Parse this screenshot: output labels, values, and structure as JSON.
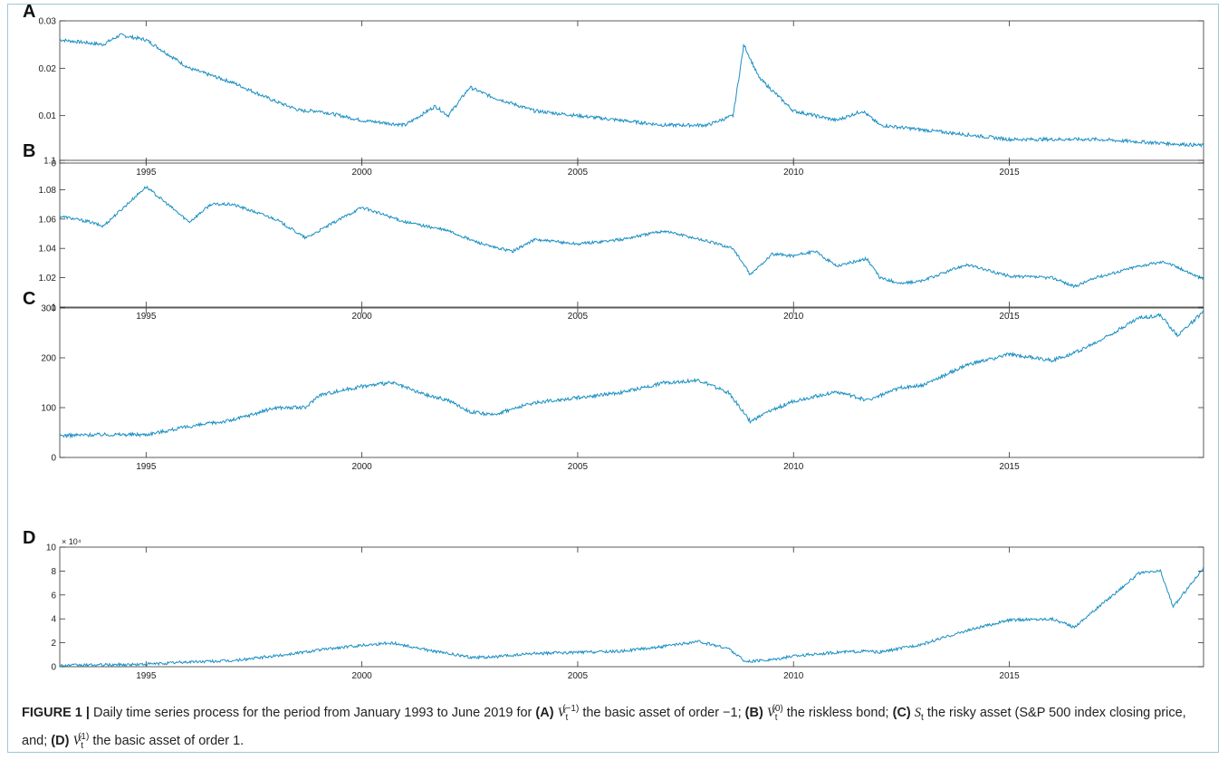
{
  "figure": {
    "caption_label": "FIGURE 1 |",
    "caption_intro": "Daily time series process for the period from January 1993 to June 2019 for",
    "caption_items": [
      {
        "tag": "(A)",
        "symbol": "V",
        "sub": "t",
        "sup": "(−1)",
        "text": "the basic asset of order −1;"
      },
      {
        "tag": "(B)",
        "symbol": "V",
        "sub": "t",
        "sup": "(0)",
        "text": "the riskless bond;"
      },
      {
        "tag": "(C)",
        "symbol": "S",
        "sub": "t",
        "sup": "",
        "text": "the risky asset (S&P 500 index closing price, and;"
      },
      {
        "tag": "(D)",
        "symbol": "V",
        "sub": "t",
        "sup": "(1)",
        "text": "the basic asset of order 1."
      }
    ]
  },
  "colors": {
    "line": "#1a8fc2",
    "axis": "#333333"
  },
  "chart_data": [
    {
      "type": "line",
      "panel_label": "A",
      "x_start": 1993.0,
      "x_end": 2019.5,
      "xticks": [
        1995,
        2000,
        2005,
        2010,
        2015
      ],
      "ylim": [
        0,
        0.03
      ],
      "yticks": [
        0,
        0.01,
        0.02,
        0.03
      ],
      "ytick_labels": [
        "0",
        "0.01",
        "0.02",
        "0.03"
      ],
      "exponent_label": "",
      "series_points": [
        [
          1993.0,
          0.026
        ],
        [
          1994.0,
          0.025
        ],
        [
          1994.4,
          0.027
        ],
        [
          1995.0,
          0.026
        ],
        [
          1996.0,
          0.02
        ],
        [
          1997.0,
          0.017
        ],
        [
          1998.0,
          0.013
        ],
        [
          1998.6,
          0.011
        ],
        [
          1999.0,
          0.011
        ],
        [
          2000.0,
          0.009
        ],
        [
          2001.0,
          0.008
        ],
        [
          2001.7,
          0.012
        ],
        [
          2002.0,
          0.01
        ],
        [
          2002.5,
          0.016
        ],
        [
          2003.0,
          0.014
        ],
        [
          2004.0,
          0.011
        ],
        [
          2005.0,
          0.01
        ],
        [
          2007.0,
          0.008
        ],
        [
          2008.0,
          0.008
        ],
        [
          2008.6,
          0.01
        ],
        [
          2008.85,
          0.025
        ],
        [
          2009.2,
          0.018
        ],
        [
          2010.0,
          0.011
        ],
        [
          2011.0,
          0.009
        ],
        [
          2011.6,
          0.011
        ],
        [
          2012.0,
          0.008
        ],
        [
          2015.0,
          0.005
        ],
        [
          2017.0,
          0.005
        ],
        [
          2019.5,
          0.0037
        ]
      ]
    },
    {
      "type": "line",
      "panel_label": "B",
      "x_start": 1993.0,
      "x_end": 2019.5,
      "xticks": [
        1995,
        2000,
        2005,
        2010,
        2015
      ],
      "ylim": [
        1,
        1.1
      ],
      "yticks": [
        1,
        1.02,
        1.04,
        1.06,
        1.08,
        1.1
      ],
      "ytick_labels": [
        "1",
        "1.02",
        "1.04",
        "1.06",
        "1.08",
        "1.1"
      ],
      "exponent_label": "",
      "series_points": [
        [
          1993.0,
          1.062
        ],
        [
          1993.7,
          1.058
        ],
        [
          1994.0,
          1.055
        ],
        [
          1995.0,
          1.082
        ],
        [
          1996.0,
          1.058
        ],
        [
          1996.5,
          1.07
        ],
        [
          1997.0,
          1.07
        ],
        [
          1998.0,
          1.06
        ],
        [
          1998.7,
          1.047
        ],
        [
          1999.5,
          1.06
        ],
        [
          2000.0,
          1.068
        ],
        [
          2001.0,
          1.058
        ],
        [
          2002.0,
          1.052
        ],
        [
          2002.5,
          1.046
        ],
        [
          2003.0,
          1.041
        ],
        [
          2003.5,
          1.038
        ],
        [
          2004.0,
          1.046
        ],
        [
          2005.0,
          1.043
        ],
        [
          2006.0,
          1.046
        ],
        [
          2007.0,
          1.052
        ],
        [
          2008.0,
          1.045
        ],
        [
          2008.6,
          1.04
        ],
        [
          2009.0,
          1.022
        ],
        [
          2009.5,
          1.036
        ],
        [
          2010.0,
          1.035
        ],
        [
          2010.5,
          1.038
        ],
        [
          2011.0,
          1.028
        ],
        [
          2011.7,
          1.033
        ],
        [
          2012.0,
          1.02
        ],
        [
          2012.5,
          1.016
        ],
        [
          2013.0,
          1.018
        ],
        [
          2014.0,
          1.029
        ],
        [
          2015.0,
          1.021
        ],
        [
          2016.0,
          1.02
        ],
        [
          2016.5,
          1.014
        ],
        [
          2017.0,
          1.02
        ],
        [
          2018.0,
          1.028
        ],
        [
          2018.6,
          1.031
        ],
        [
          2019.5,
          1.019
        ]
      ]
    },
    {
      "type": "line",
      "panel_label": "C",
      "x_start": 1993.0,
      "x_end": 2019.5,
      "xticks": [
        1995,
        2000,
        2005,
        2010,
        2015
      ],
      "ylim": [
        0,
        300
      ],
      "yticks": [
        0,
        100,
        200,
        300
      ],
      "ytick_labels": [
        "0",
        "100",
        "200",
        "300"
      ],
      "exponent_label": "",
      "series_points": [
        [
          1993.0,
          44
        ],
        [
          1994.0,
          46
        ],
        [
          1995.0,
          46
        ],
        [
          1996.0,
          62
        ],
        [
          1997.0,
          75
        ],
        [
          1998.0,
          100
        ],
        [
          1998.7,
          100
        ],
        [
          1999.0,
          125
        ],
        [
          2000.0,
          143
        ],
        [
          2000.7,
          150
        ],
        [
          2001.5,
          125
        ],
        [
          2002.0,
          115
        ],
        [
          2002.5,
          92
        ],
        [
          2003.0,
          85
        ],
        [
          2004.0,
          110
        ],
        [
          2005.0,
          120
        ],
        [
          2006.0,
          130
        ],
        [
          2007.0,
          150
        ],
        [
          2007.8,
          155
        ],
        [
          2008.5,
          130
        ],
        [
          2009.0,
          72
        ],
        [
          2009.5,
          95
        ],
        [
          2010.0,
          113
        ],
        [
          2011.0,
          132
        ],
        [
          2011.7,
          115
        ],
        [
          2012.5,
          140
        ],
        [
          2013.0,
          145
        ],
        [
          2014.0,
          185
        ],
        [
          2015.0,
          207
        ],
        [
          2016.0,
          195
        ],
        [
          2016.5,
          210
        ],
        [
          2017.0,
          230
        ],
        [
          2018.0,
          280
        ],
        [
          2018.5,
          285
        ],
        [
          2018.9,
          245
        ],
        [
          2019.5,
          293
        ]
      ]
    },
    {
      "type": "line",
      "panel_label": "D",
      "x_start": 1993.0,
      "x_end": 2019.5,
      "xticks": [
        1995,
        2000,
        2005,
        2010,
        2015
      ],
      "ylim": [
        0,
        10
      ],
      "yticks": [
        0,
        2,
        4,
        6,
        8,
        10
      ],
      "ytick_labels": [
        "0",
        "2",
        "4",
        "6",
        "8",
        "10"
      ],
      "exponent_label": "× 10⁴",
      "series_points": [
        [
          1993.0,
          0.1
        ],
        [
          1995.0,
          0.2
        ],
        [
          1996.0,
          0.4
        ],
        [
          1997.0,
          0.5
        ],
        [
          1998.0,
          0.9
        ],
        [
          1999.0,
          1.4
        ],
        [
          2000.0,
          1.8
        ],
        [
          2000.7,
          2.0
        ],
        [
          2001.5,
          1.4
        ],
        [
          2002.5,
          0.8
        ],
        [
          2003.0,
          0.8
        ],
        [
          2004.0,
          1.1
        ],
        [
          2005.0,
          1.2
        ],
        [
          2006.0,
          1.3
        ],
        [
          2007.0,
          1.7
        ],
        [
          2007.8,
          2.1
        ],
        [
          2008.5,
          1.5
        ],
        [
          2008.9,
          0.4
        ],
        [
          2009.5,
          0.6
        ],
        [
          2010.0,
          0.9
        ],
        [
          2011.0,
          1.2
        ],
        [
          2011.7,
          1.3
        ],
        [
          2012.0,
          1.2
        ],
        [
          2013.0,
          1.9
        ],
        [
          2014.0,
          3.0
        ],
        [
          2015.0,
          3.9
        ],
        [
          2016.0,
          4.0
        ],
        [
          2016.5,
          3.3
        ],
        [
          2017.0,
          4.8
        ],
        [
          2018.0,
          7.8
        ],
        [
          2018.5,
          8.0
        ],
        [
          2018.8,
          5.0
        ],
        [
          2019.5,
          8.3
        ]
      ]
    }
  ]
}
